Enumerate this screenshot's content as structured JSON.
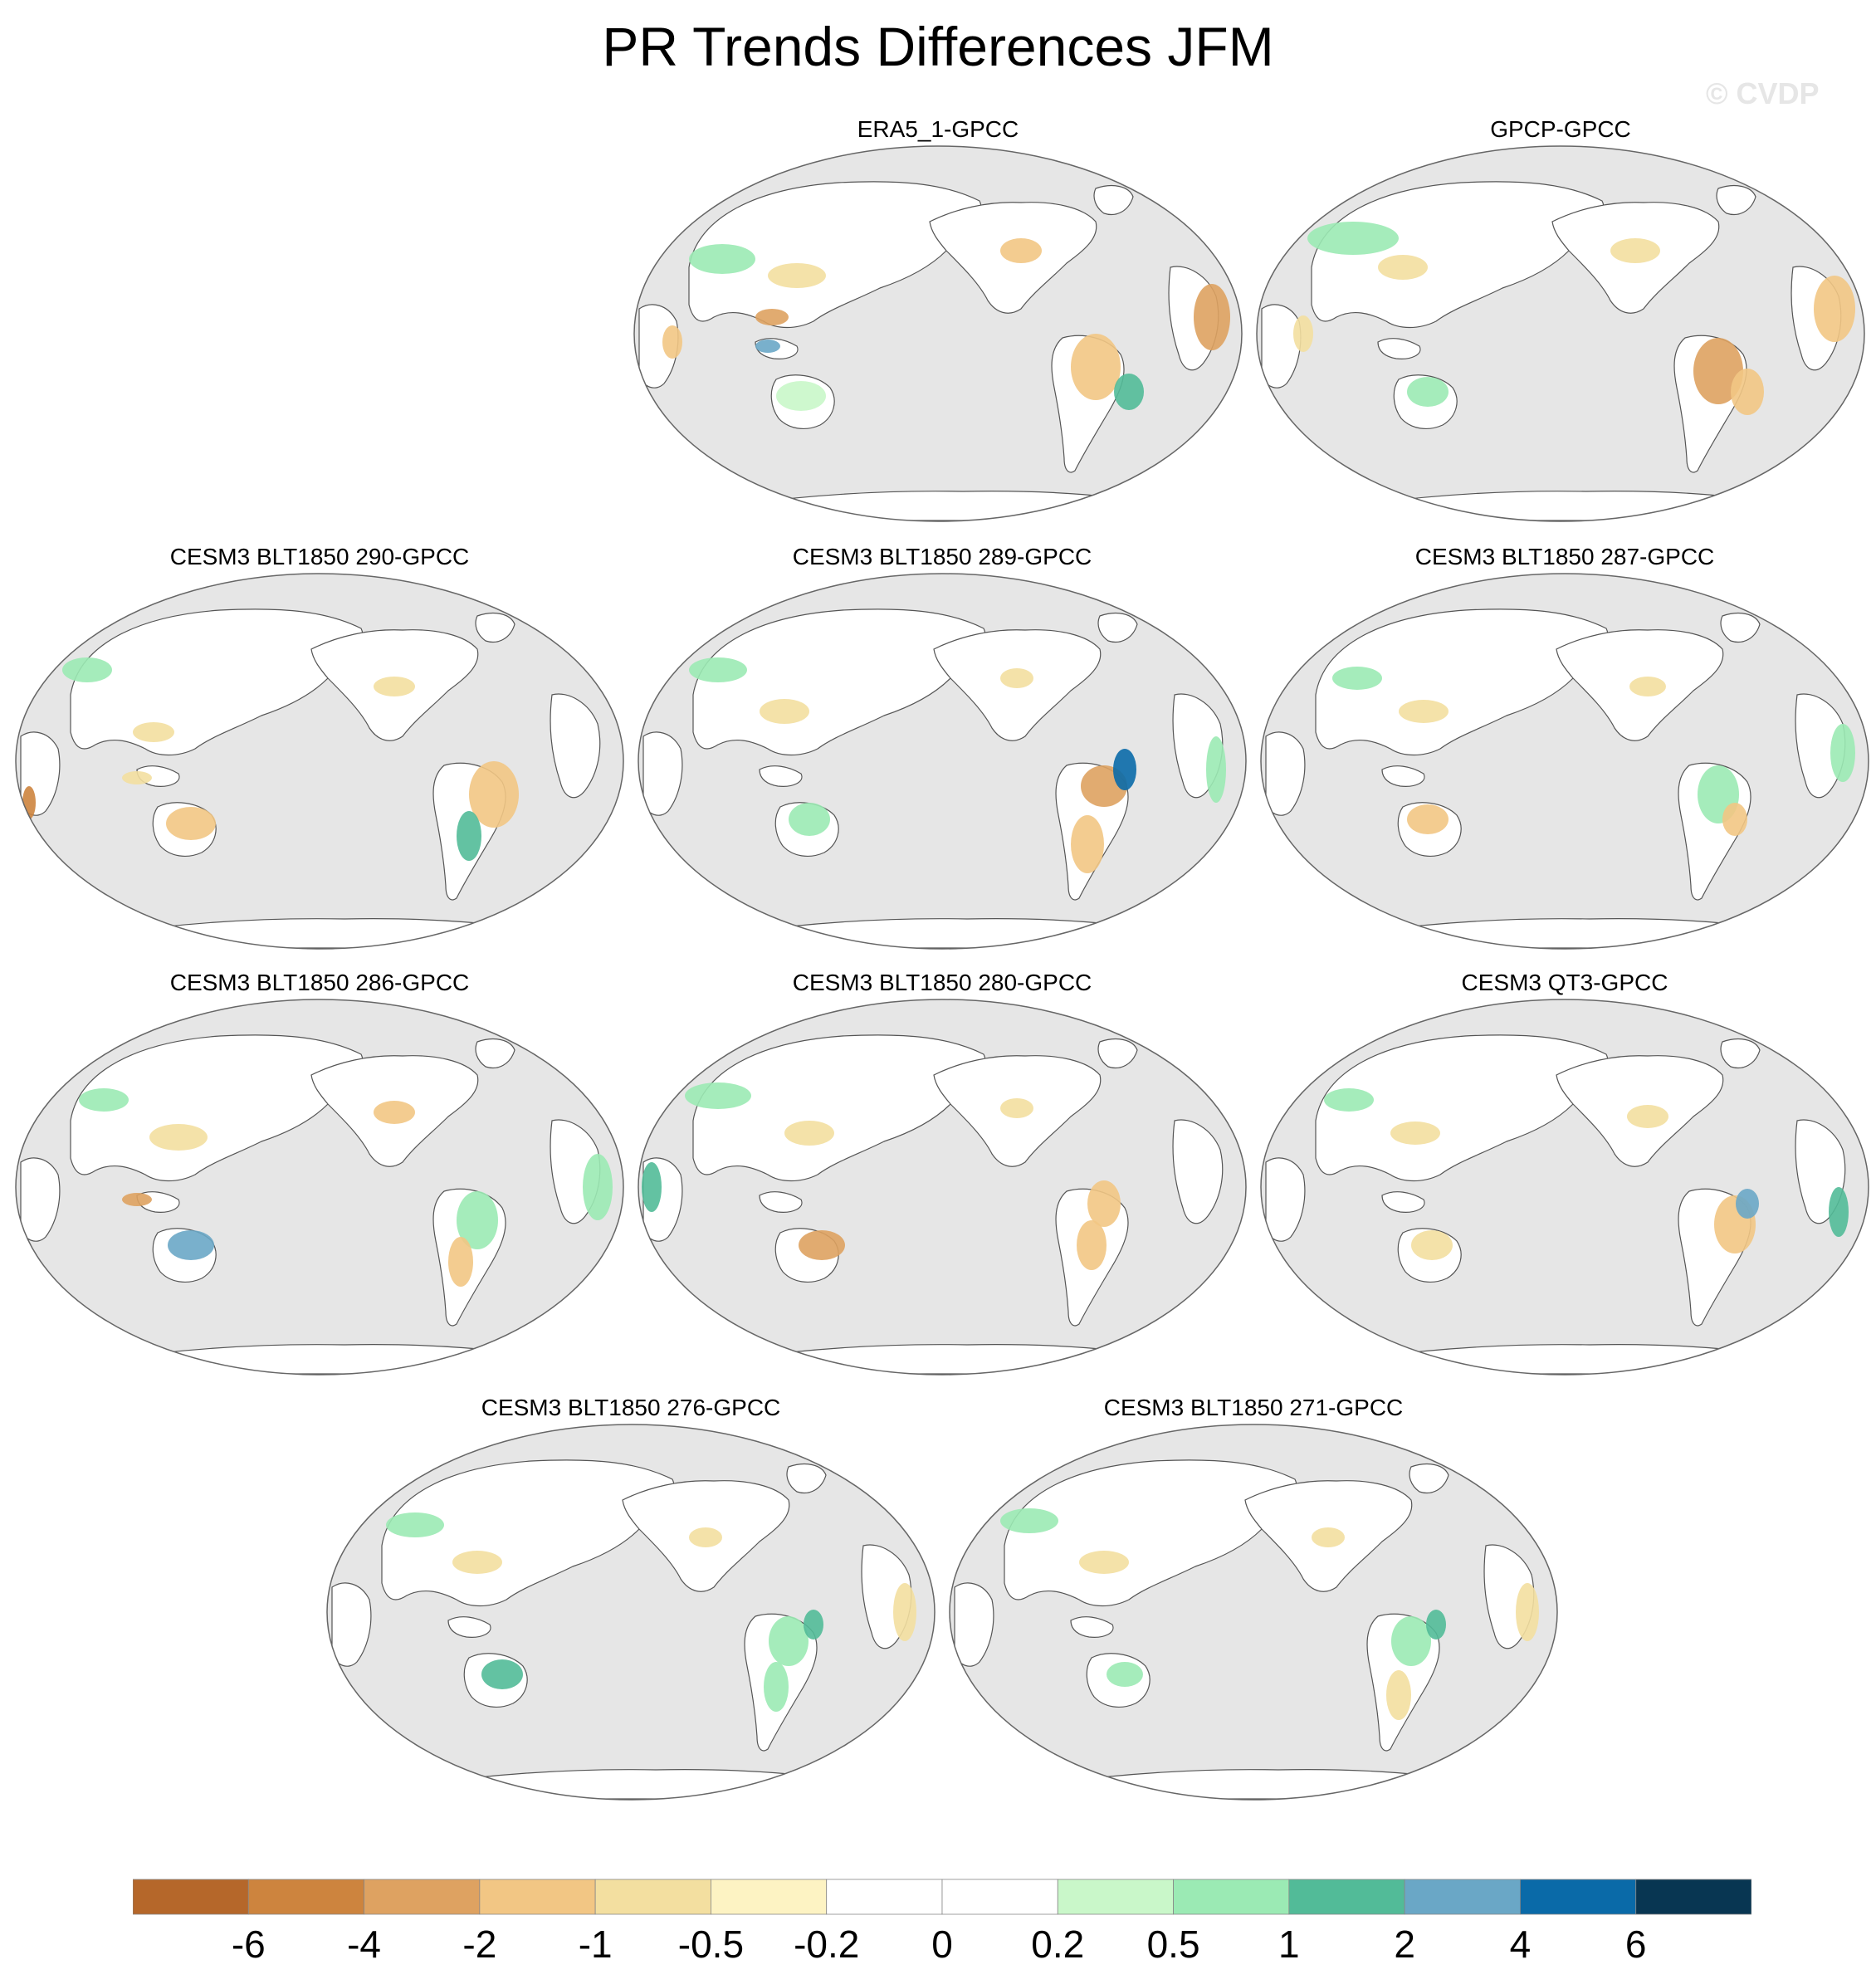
{
  "title": "PR Trends Differences JFM",
  "watermark": "© CVDP",
  "panels": [
    {
      "title": "ERA5_1-GPCC"
    },
    {
      "title": "GPCP-GPCC"
    },
    {
      "title": "CESM3 BLT1850 290-GPCC"
    },
    {
      "title": "CESM3 BLT1850 289-GPCC"
    },
    {
      "title": "CESM3 BLT1850 287-GPCC"
    },
    {
      "title": "CESM3 BLT1850 286-GPCC"
    },
    {
      "title": "CESM3 BLT1850 280-GPCC"
    },
    {
      "title": "CESM3 QT3-GPCC"
    },
    {
      "title": "CESM3 BLT1850 276-GPCC"
    },
    {
      "title": "CESM3 BLT1850 271-GPCC"
    }
  ],
  "colorbar": {
    "colors": [
      "#b5672a",
      "#cd843e",
      "#dea261",
      "#f2c684",
      "#f3dfa0",
      "#fdf3c3",
      "#ffffff",
      "#ffffff",
      "#c9f7c9",
      "#9beab4",
      "#52bb98",
      "#6aa7c6",
      "#0a6aa8",
      "#083652"
    ],
    "labels": [
      "-6",
      "-4",
      "-2",
      "-1",
      "-0.5",
      "-0.2",
      "0",
      "0.2",
      "0.5",
      "1",
      "2",
      "4",
      "6"
    ]
  },
  "colors": {
    "ocean": "#e6e6e6",
    "land_neutral": "#ffffff",
    "coast": "#555555"
  }
}
